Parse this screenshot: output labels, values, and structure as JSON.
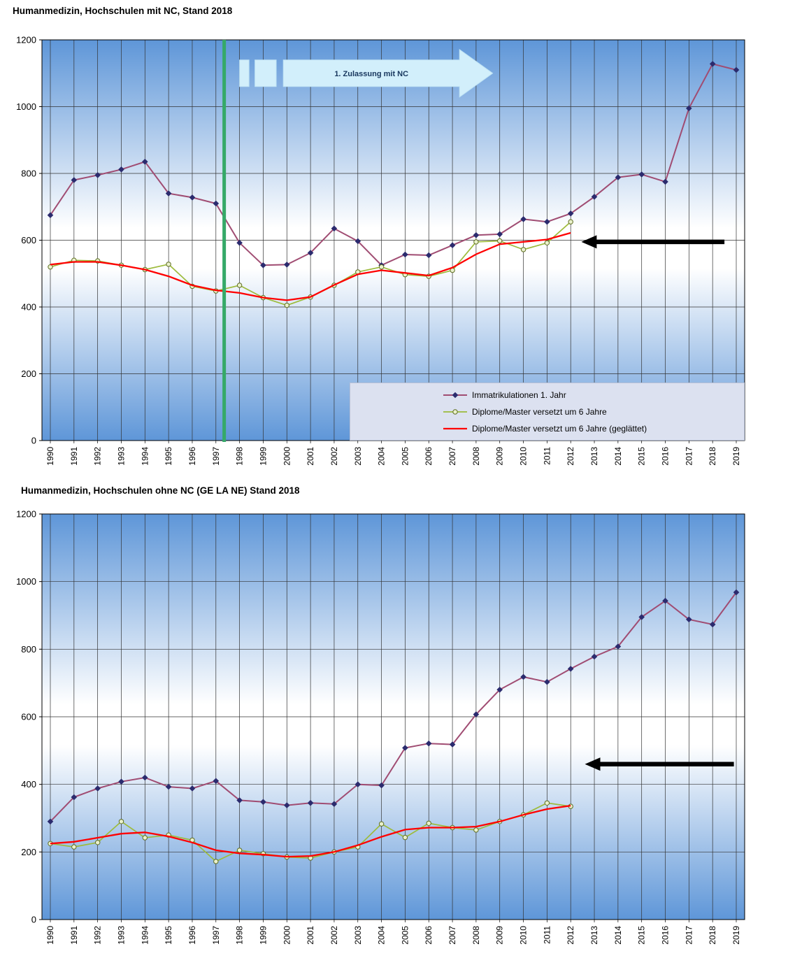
{
  "chart_data": [
    {
      "type": "line",
      "title": "Humanmedizin, Hochschulen mit NC, Stand 2018",
      "x": [
        "1990",
        "1991",
        "1992",
        "1993",
        "1994",
        "1995",
        "1996",
        "1997",
        "1998",
        "1999",
        "2000",
        "2001",
        "2002",
        "2003",
        "2004",
        "2005",
        "2006",
        "2007",
        "2008",
        "2009",
        "2010",
        "2011",
        "2012",
        "2013",
        "2014",
        "2015",
        "2016",
        "2017",
        "2018",
        "2019"
      ],
      "ylim": [
        0,
        1200
      ],
      "ytick_step": 200,
      "grid": true,
      "background_gradient": {
        "top": "#5E96D8",
        "middle": "#FFFFFF",
        "bottom": "#5E96D8"
      },
      "series": [
        {
          "name": "Immatrikulationen 1. Jahr",
          "color": "#A04C72",
          "line_width": 2,
          "marker": "diamond",
          "marker_fill": "#2B2B6E",
          "values": [
            675,
            780,
            795,
            812,
            835,
            740,
            728,
            710,
            592,
            525,
            527,
            562,
            635,
            597,
            525,
            557,
            555,
            585,
            615,
            618,
            663,
            655,
            680,
            730,
            788,
            797,
            775,
            995,
            1128,
            1110
          ]
        },
        {
          "name": "Diplome/Master versetzt um 6 Jahre",
          "color": "#9DBB3C",
          "line_width": 1.7,
          "marker": "circle",
          "marker_fill": "#EAF1CC",
          "marker_edge": "#5F6E23",
          "values": [
            520,
            540,
            538,
            525,
            512,
            528,
            462,
            448,
            465,
            428,
            405,
            430,
            465,
            505,
            520,
            497,
            492,
            510,
            595,
            598,
            572,
            592,
            655,
            null,
            null,
            null,
            null,
            null,
            null,
            null
          ]
        },
        {
          "name": "Diplome/Master versetzt um 6 Jahre (geglättet)",
          "color": "#FF0000",
          "line_width": 2.3,
          "marker": "none",
          "values": [
            527,
            535,
            535,
            525,
            512,
            492,
            465,
            450,
            442,
            428,
            420,
            430,
            466,
            498,
            510,
            502,
            494,
            518,
            558,
            588,
            595,
            602,
            622,
            null,
            null,
            null,
            null,
            null,
            null,
            null
          ]
        }
      ],
      "legend": {
        "visible": true,
        "position": "inside-bottom-right",
        "background": "#DCE1F0"
      },
      "annotations": {
        "nc_start_line": {
          "year": 1997.35,
          "color": "#35A968"
        },
        "block_arrow": {
          "label": "1. Zulassung  mit NC",
          "y_center": 1100,
          "dashes_years": [
            [
              1998.0,
              1998.4
            ],
            [
              1998.65,
              1999.55
            ]
          ],
          "body_years": [
            1999.85,
            2007.3
          ],
          "tip_year": 2008.7,
          "fill": "#D2EFFB",
          "border": "#BFE3F4",
          "text_color": "#17365D"
        },
        "back_arrow": {
          "y": 595,
          "tip_year": 2012.45,
          "tail_year": 2018.5,
          "color": "#000000"
        }
      }
    },
    {
      "type": "line",
      "title": "Humanmedizin, Hochschulen ohne NC (GE LA NE) Stand 2018",
      "x": [
        "1990",
        "1991",
        "1992",
        "1993",
        "1994",
        "1995",
        "1996",
        "1997",
        "1998",
        "1999",
        "2000",
        "2001",
        "2002",
        "2003",
        "2004",
        "2005",
        "2006",
        "2007",
        "2008",
        "2009",
        "2010",
        "2011",
        "2012",
        "2013",
        "2014",
        "2015",
        "2016",
        "2017",
        "2018",
        "2019"
      ],
      "ylim": [
        0,
        1200
      ],
      "ytick_step": 200,
      "grid": true,
      "background_gradient": {
        "top": "#5E96D8",
        "middle": "#FFFFFF",
        "bottom": "#5E96D8"
      },
      "series": [
        {
          "name": "Immatrikulationen 1. Jahr",
          "color": "#A04C72",
          "line_width": 2,
          "marker": "diamond",
          "marker_fill": "#2B2B6E",
          "values": [
            290,
            362,
            388,
            408,
            420,
            393,
            388,
            410,
            353,
            348,
            338,
            345,
            342,
            400,
            397,
            508,
            521,
            518,
            607,
            680,
            718,
            703,
            742,
            778,
            808,
            895,
            943,
            888,
            873,
            968
          ]
        },
        {
          "name": "Diplome/Master versetzt um 6 Jahre",
          "color": "#9DBB3C",
          "line_width": 1.7,
          "marker": "circle",
          "marker_fill": "#EAF1CC",
          "marker_edge": "#5F6E23",
          "values": [
            225,
            215,
            228,
            290,
            242,
            250,
            235,
            172,
            205,
            195,
            185,
            182,
            200,
            215,
            283,
            243,
            285,
            272,
            265,
            290,
            310,
            345,
            335,
            null,
            null,
            null,
            null,
            null,
            null,
            null
          ]
        },
        {
          "name": "Diplome/Master versetzt um 6 Jahre (geglättet)",
          "color": "#FF0000",
          "line_width": 2.3,
          "marker": "none",
          "values": [
            225,
            230,
            242,
            254,
            258,
            246,
            228,
            205,
            196,
            192,
            186,
            188,
            200,
            220,
            245,
            266,
            272,
            272,
            275,
            290,
            310,
            327,
            337,
            null,
            null,
            null,
            null,
            null,
            null,
            null
          ]
        }
      ],
      "legend": {
        "visible": false
      },
      "annotations": {
        "back_arrow": {
          "y": 460,
          "tip_year": 2012.6,
          "tail_year": 2018.9,
          "color": "#000000"
        }
      }
    }
  ]
}
